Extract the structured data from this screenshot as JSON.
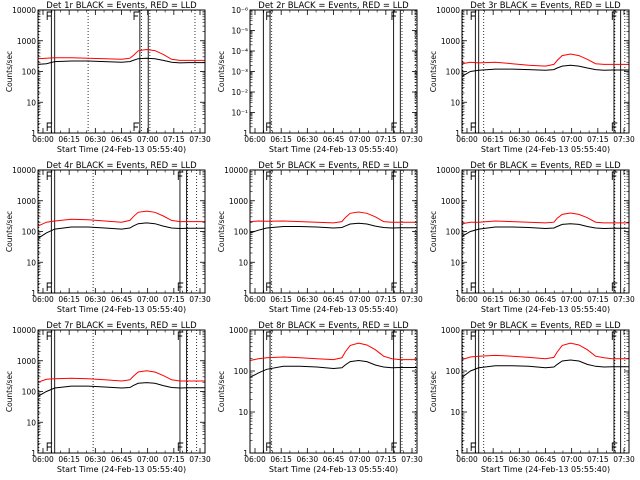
{
  "x_tick_labels": [
    "06:00",
    "06:15",
    "06:30",
    "06:45",
    "07:00",
    "07:15",
    "07:30"
  ],
  "colors": {
    "events": "#000000",
    "lld": "#ff0000"
  },
  "chart_data": [
    {
      "type": "line",
      "title": "Det 1r  BLACK = Events, RED = LLD",
      "xlabel": "Start Time (24-Feb-13 05:55:40)",
      "ylabel": "Counts/sec",
      "xlim": [
        0,
        100
      ],
      "yscale": "log",
      "ylim": [
        1,
        10000
      ],
      "y_tick_labels": [
        "1",
        "10",
        "100",
        "1000",
        "10000"
      ],
      "saa_markers": [
        5.5,
        57.5
      ],
      "solid_vertical_lines": [
        8,
        10,
        61,
        66
      ],
      "dotted_vertical_lines": [
        0.5,
        30,
        62,
        67,
        94
      ],
      "x": [
        0,
        5,
        10,
        20,
        30,
        40,
        50,
        55,
        57,
        60,
        65,
        70,
        75,
        80,
        85,
        90,
        95,
        100
      ],
      "series": [
        {
          "name": "LLD",
          "color": "red",
          "values": [
            260,
            270,
            280,
            280,
            270,
            260,
            250,
            270,
            330,
            470,
            520,
            480,
            360,
            250,
            230,
            230,
            230,
            230
          ]
        },
        {
          "name": "Events",
          "color": "black",
          "values": [
            170,
            180,
            210,
            220,
            220,
            210,
            200,
            210,
            230,
            260,
            270,
            260,
            230,
            200,
            190,
            195,
            195,
            195
          ]
        }
      ]
    },
    {
      "type": "line",
      "title": "Det 2r  BLACK = Events, RED = LLD",
      "xlabel": "Start Time (24-Feb-13 05:55:40)",
      "ylabel": "Counts/sec",
      "xlim": [
        0,
        100
      ],
      "yscale": "log",
      "ylim": [
        1,
        1e-06
      ],
      "y_tick_labels": [
        "1",
        "10⁻¹",
        "10⁻²",
        "10⁻³",
        "10⁻⁴",
        "10⁻⁵",
        "10⁻⁶"
      ],
      "saa_markers": [
        10,
        85
      ],
      "solid_vertical_lines": [
        8,
        12,
        86,
        90
      ],
      "dotted_vertical_lines": [
        13,
        91,
        99
      ],
      "x": [],
      "series": []
    },
    {
      "type": "line",
      "title": "Det 3r  BLACK = Events, RED = LLD",
      "xlabel": "Start Time (24-Feb-13 05:55:40)",
      "ylabel": "Counts/sec",
      "xlim": [
        0,
        100
      ],
      "yscale": "log",
      "ylim": [
        1,
        10000
      ],
      "y_tick_labels": [
        "1",
        "10",
        "100",
        "1000",
        "10000"
      ],
      "saa_markers": [
        5.5,
        90
      ],
      "solid_vertical_lines": [
        8,
        10,
        91,
        95
      ],
      "dotted_vertical_lines": [
        0.5,
        13,
        91.5,
        97.5
      ],
      "x": [
        0,
        5,
        10,
        20,
        30,
        40,
        50,
        55,
        57,
        60,
        65,
        70,
        75,
        80,
        85,
        90,
        95,
        100
      ],
      "series": [
        {
          "name": "LLD",
          "color": "red",
          "values": [
            180,
            200,
            190,
            200,
            180,
            160,
            150,
            170,
            230,
            330,
            370,
            330,
            250,
            180,
            170,
            170,
            170,
            170
          ]
        },
        {
          "name": "Events",
          "color": "black",
          "values": [
            70,
            100,
            110,
            120,
            120,
            115,
            110,
            115,
            130,
            150,
            160,
            150,
            130,
            115,
            110,
            112,
            112,
            112
          ]
        }
      ]
    },
    {
      "type": "line",
      "title": "Det 4r  BLACK = Events, RED = LLD",
      "xlabel": "Start Time (24-Feb-13 05:55:40)",
      "ylabel": "Counts/sec",
      "xlim": [
        0,
        100
      ],
      "yscale": "log",
      "ylim": [
        1,
        10000
      ],
      "y_tick_labels": [
        "1",
        "10",
        "100",
        "1000",
        "10000"
      ],
      "saa_markers": [
        5.5,
        84
      ],
      "solid_vertical_lines": [
        8,
        10,
        85,
        89
      ],
      "dotted_vertical_lines": [
        0.5,
        33,
        89.5,
        95
      ],
      "x": [
        0,
        5,
        10,
        20,
        30,
        40,
        50,
        55,
        57,
        60,
        65,
        70,
        75,
        80,
        85,
        90,
        95,
        100
      ],
      "series": [
        {
          "name": "LLD",
          "color": "red",
          "values": [
            150,
            200,
            220,
            250,
            240,
            220,
            200,
            230,
            300,
            420,
            460,
            420,
            320,
            230,
            210,
            210,
            210,
            210
          ]
        },
        {
          "name": "Events",
          "color": "black",
          "values": [
            60,
            90,
            120,
            140,
            140,
            130,
            120,
            130,
            150,
            180,
            190,
            180,
            150,
            130,
            125,
            128,
            128,
            128
          ]
        }
      ]
    },
    {
      "type": "line",
      "title": "Det 5r  BLACK = Events, RED = LLD",
      "xlabel": "Start Time (24-Feb-13 05:55:40)",
      "ylabel": "Counts/sec",
      "xlim": [
        0,
        100
      ],
      "yscale": "log",
      "ylim": [
        1,
        10000
      ],
      "y_tick_labels": [
        "1",
        "10",
        "100",
        "1000",
        "10000"
      ],
      "saa_markers": [
        10,
        85
      ],
      "solid_vertical_lines": [
        8,
        12,
        86,
        90
      ],
      "dotted_vertical_lines": [
        13,
        91,
        99
      ],
      "x": [
        0,
        5,
        10,
        20,
        30,
        40,
        50,
        55,
        57,
        60,
        65,
        70,
        75,
        80,
        85,
        90,
        95,
        100
      ],
      "series": [
        {
          "name": "LLD",
          "color": "red",
          "values": [
            210,
            220,
            215,
            220,
            210,
            200,
            190,
            210,
            280,
            390,
            430,
            390,
            300,
            210,
            200,
            200,
            200,
            200
          ]
        },
        {
          "name": "Events",
          "color": "black",
          "values": [
            90,
            110,
            130,
            145,
            145,
            140,
            130,
            135,
            150,
            175,
            185,
            175,
            150,
            135,
            130,
            132,
            132,
            132
          ]
        }
      ]
    },
    {
      "type": "line",
      "title": "Det 6r  BLACK = Events, RED = LLD",
      "xlabel": "Start Time (24-Feb-13 05:55:40)",
      "ylabel": "Counts/sec",
      "xlim": [
        0,
        100
      ],
      "yscale": "log",
      "ylim": [
        1,
        10000
      ],
      "y_tick_labels": [
        "1",
        "10",
        "100",
        "1000",
        "10000"
      ],
      "saa_markers": [
        5.5,
        90
      ],
      "solid_vertical_lines": [
        8,
        10,
        91,
        95
      ],
      "dotted_vertical_lines": [
        0.5,
        13,
        91.5,
        97.5
      ],
      "x": [
        0,
        5,
        10,
        20,
        30,
        40,
        50,
        55,
        57,
        60,
        65,
        70,
        75,
        80,
        85,
        90,
        95,
        100
      ],
      "series": [
        {
          "name": "LLD",
          "color": "red",
          "values": [
            180,
            200,
            200,
            220,
            210,
            200,
            190,
            200,
            270,
            360,
            400,
            360,
            280,
            200,
            190,
            190,
            190,
            190
          ]
        },
        {
          "name": "Events",
          "color": "black",
          "values": [
            70,
            100,
            120,
            140,
            140,
            135,
            125,
            130,
            145,
            170,
            180,
            170,
            145,
            130,
            125,
            128,
            128,
            128
          ]
        }
      ]
    },
    {
      "type": "line",
      "title": "Det 7r  BLACK = Events, RED = LLD",
      "xlabel": "Start Time (24-Feb-13 05:55:40)",
      "ylabel": "Counts/sec",
      "xlim": [
        0,
        100
      ],
      "yscale": "log",
      "ylim": [
        1,
        10000
      ],
      "y_tick_labels": [
        "1",
        "10",
        "100",
        "1000",
        "10000"
      ],
      "saa_markers": [
        5.5,
        84
      ],
      "solid_vertical_lines": [
        8,
        10,
        85,
        89
      ],
      "dotted_vertical_lines": [
        0.5,
        33,
        89.5,
        95
      ],
      "x": [
        0,
        5,
        10,
        20,
        30,
        40,
        50,
        55,
        57,
        60,
        65,
        70,
        75,
        80,
        85,
        90,
        95,
        100
      ],
      "series": [
        {
          "name": "LLD",
          "color": "red",
          "values": [
            200,
            250,
            260,
            270,
            260,
            240,
            220,
            240,
            310,
            430,
            470,
            430,
            330,
            240,
            220,
            220,
            220,
            220
          ]
        },
        {
          "name": "Events",
          "color": "black",
          "values": [
            70,
            100,
            130,
            150,
            150,
            140,
            130,
            135,
            155,
            185,
            195,
            185,
            155,
            135,
            130,
            133,
            133,
            133
          ]
        }
      ]
    },
    {
      "type": "line",
      "title": "Det 8r  BLACK = Events, RED = LLD",
      "xlabel": "Start Time (24-Feb-13 05:55:40)",
      "ylabel": "Counts/sec",
      "xlim": [
        0,
        100
      ],
      "yscale": "log",
      "ylim": [
        1,
        1000
      ],
      "y_tick_labels": [
        "1",
        "10",
        "100",
        "1000"
      ],
      "saa_markers": [
        10,
        85
      ],
      "solid_vertical_lines": [
        8,
        12,
        86,
        90
      ],
      "dotted_vertical_lines": [
        13,
        91,
        99
      ],
      "x": [
        0,
        5,
        10,
        20,
        30,
        40,
        50,
        55,
        57,
        60,
        65,
        70,
        75,
        80,
        85,
        90,
        95,
        100
      ],
      "series": [
        {
          "name": "LLD",
          "color": "red",
          "values": [
            180,
            200,
            210,
            220,
            210,
            200,
            190,
            210,
            290,
            420,
            480,
            430,
            330,
            230,
            200,
            190,
            190,
            190
          ]
        },
        {
          "name": "Events",
          "color": "black",
          "values": [
            70,
            90,
            110,
            130,
            130,
            125,
            115,
            120,
            140,
            170,
            180,
            170,
            140,
            125,
            120,
            122,
            122,
            122
          ]
        }
      ]
    },
    {
      "type": "line",
      "title": "Det 9r  BLACK = Events, RED = LLD",
      "xlabel": "Start Time (24-Feb-13 05:55:40)",
      "ylabel": "Counts/sec",
      "xlim": [
        0,
        100
      ],
      "yscale": "log",
      "ylim": [
        1,
        1000
      ],
      "y_tick_labels": [
        "1",
        "10",
        "100",
        "1000"
      ],
      "saa_markers": [
        5.5,
        90
      ],
      "solid_vertical_lines": [
        8,
        10,
        91,
        95
      ],
      "dotted_vertical_lines": [
        0.5,
        13,
        91.5,
        97.5
      ],
      "x": [
        0,
        5,
        10,
        20,
        30,
        40,
        50,
        55,
        57,
        60,
        65,
        70,
        75,
        80,
        85,
        90,
        95,
        100
      ],
      "series": [
        {
          "name": "LLD",
          "color": "red",
          "values": [
            190,
            220,
            230,
            240,
            230,
            215,
            200,
            215,
            290,
            420,
            480,
            430,
            330,
            230,
            210,
            200,
            200,
            200
          ]
        },
        {
          "name": "Events",
          "color": "black",
          "values": [
            70,
            100,
            120,
            135,
            135,
            130,
            120,
            125,
            145,
            175,
            185,
            175,
            145,
            130,
            125,
            127,
            127,
            127
          ]
        }
      ]
    }
  ]
}
